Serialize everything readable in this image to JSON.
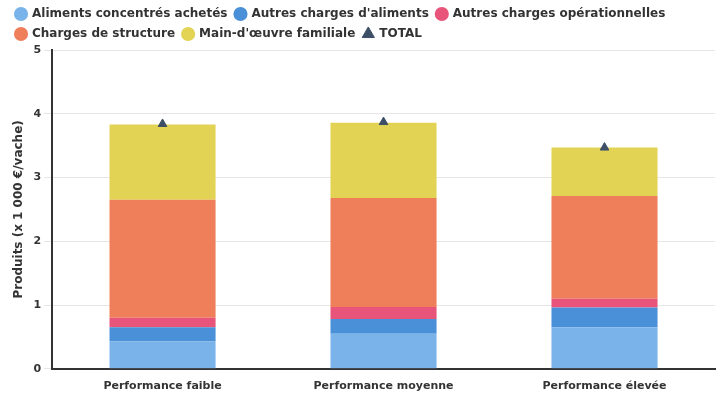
{
  "chart_data": {
    "type": "bar",
    "stacked": true,
    "y_label": "Produits (x 1 000 €/vache)",
    "categories": [
      "Performance faible",
      "Performance moyenne",
      "Performance élevée"
    ],
    "series": [
      {
        "name": "Aliments concentrés achetés",
        "color": "#7ab3ea",
        "values": [
          0.43,
          0.55,
          0.65
        ]
      },
      {
        "name": "Autres charges d'aliments",
        "color": "#4a90d9",
        "values": [
          0.22,
          0.23,
          0.31
        ]
      },
      {
        "name": "Autres charges opérationnelles",
        "color": "#e8547a",
        "values": [
          0.15,
          0.19,
          0.14
        ]
      },
      {
        "name": "Charges de structure",
        "color": "#ef7f5a",
        "values": [
          1.85,
          1.71,
          1.61
        ]
      },
      {
        "name": "Main-d'œuvre familiale",
        "color": "#e3d355",
        "values": [
          1.18,
          1.18,
          0.76
        ]
      },
      {
        "name": "TOTAL",
        "color": "#3d4f66",
        "type": "line",
        "marker": "triangle",
        "line_style": "none",
        "values": [
          3.84,
          3.87,
          3.47
        ]
      }
    ],
    "ylim": [
      0,
      5
    ],
    "yticks": [
      0,
      1,
      2,
      3,
      4,
      5
    ],
    "grid": true,
    "legend": "top"
  }
}
